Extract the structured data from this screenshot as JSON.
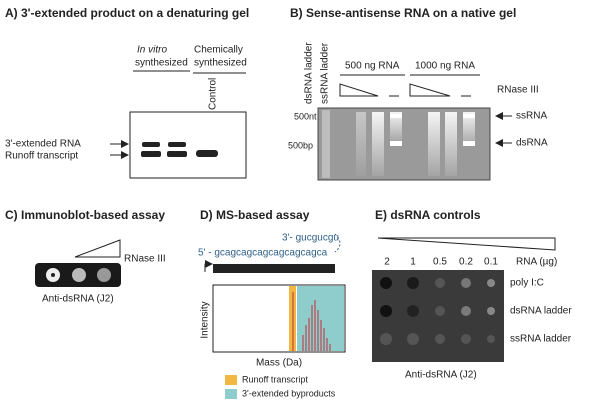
{
  "panel_a": {
    "title": "A) 3'-extended product on a denaturing gel",
    "group1_italic": "In vitro",
    "group1_line2": "synthesized",
    "group2_line1": "Chemically",
    "group2_line2": "synthesized",
    "lane_label": "Control",
    "band_labels": [
      "3'-extended RNA",
      "Runoff transcript"
    ]
  },
  "panel_b": {
    "title": "B) Sense-antisense RNA on a native gel",
    "ladder_labels": [
      "dsRNA ladder",
      "ssRNA ladder"
    ],
    "groups": [
      "500 ng RNA",
      "1000 ng RNA"
    ],
    "treatment": "RNase III",
    "size_markers": [
      "500nt",
      "500bp"
    ],
    "band_labels": [
      "ssRNA",
      "dsRNA"
    ]
  },
  "panel_c": {
    "title": "C) Immunoblot-based assay",
    "treatment": "RNase III",
    "antibody": "Anti-dsRNA (J2)"
  },
  "panel_d": {
    "title": "D) MS-based assay",
    "overhang": "3'- gucgucgu",
    "sequence": "5' - gcagcagcagcagcagcagca",
    "y_label": "Intensity",
    "x_label": "Mass (Da)",
    "legend": [
      "Runoff transcript",
      "3'-extended byproducts"
    ]
  },
  "panel_e": {
    "title": "E) dsRNA controls",
    "amount_label": "RNA (µg)",
    "amounts": [
      "2",
      "1",
      "0.5",
      "0.2",
      "0.1"
    ],
    "rows": [
      "poly I:C",
      "dsRNA ladder",
      "ssRNA ladder"
    ],
    "antibody": "Anti-dsRNA (J2)"
  }
}
